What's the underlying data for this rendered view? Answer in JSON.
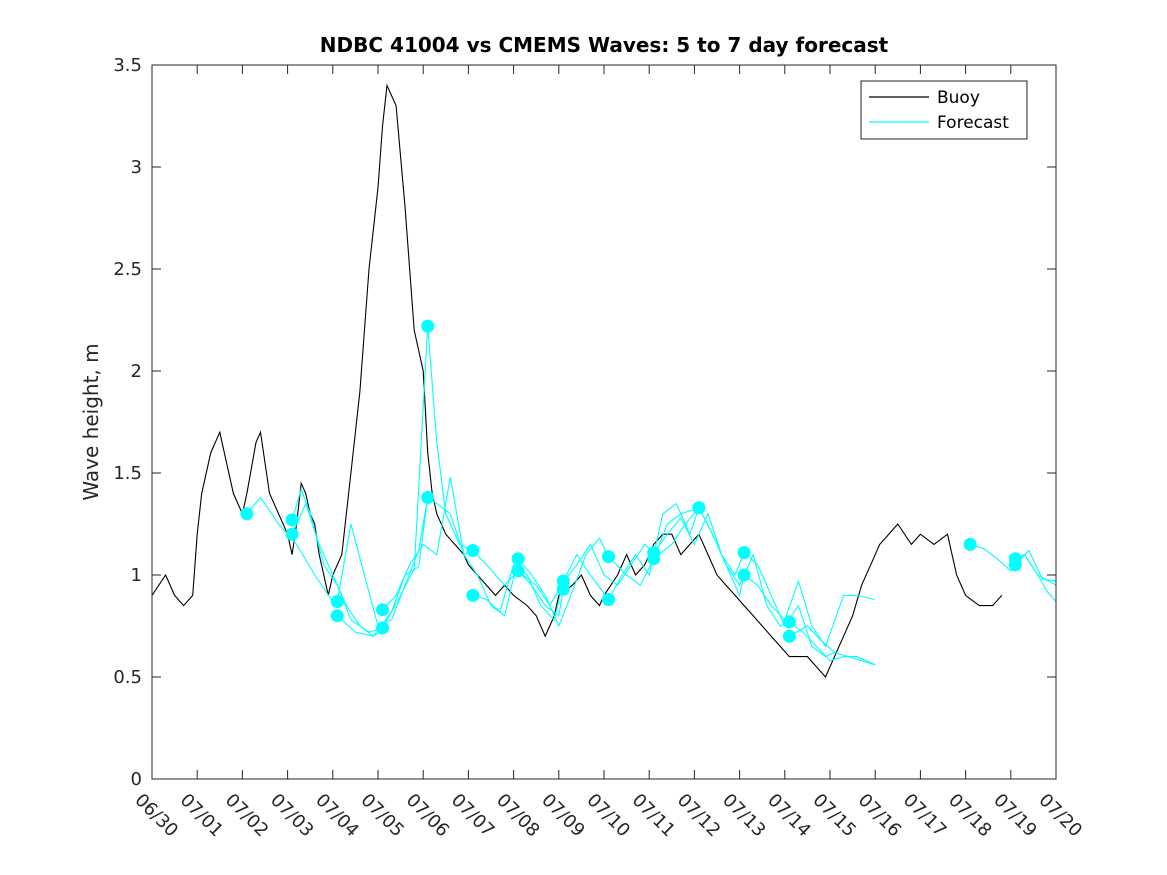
{
  "chart_data": {
    "type": "line",
    "title": "NDBC 41004 vs CMEMS Waves: 5 to 7 day forecast",
    "xlabel": "",
    "ylabel": "Wave height, m",
    "x_domain": [
      "06/30",
      "07/20"
    ],
    "ylim": [
      0,
      3.5
    ],
    "x_ticks": [
      "06/30",
      "07/01",
      "07/02",
      "07/03",
      "07/04",
      "07/05",
      "07/06",
      "07/07",
      "07/08",
      "07/09",
      "07/10",
      "07/11",
      "07/12",
      "07/13",
      "07/14",
      "07/15",
      "07/16",
      "07/17",
      "07/18",
      "07/19",
      "07/20"
    ],
    "y_ticks": [
      0,
      0.5,
      1,
      1.5,
      2,
      2.5,
      3,
      3.5
    ],
    "y_tick_labels": [
      "0",
      "0.5",
      "1",
      "1.5",
      "2",
      "2.5",
      "3",
      "3.5"
    ],
    "grid": false,
    "legend": {
      "position": "top-right",
      "entries": [
        {
          "label": "Buoy",
          "color": "#000000"
        },
        {
          "label": "Forecast",
          "color": "#00ffff"
        }
      ]
    },
    "buoy_color": "#000000",
    "forecast_color": "#00ffff",
    "buoy_series": {
      "name": "Buoy",
      "x_days": [
        0,
        0.3,
        0.5,
        0.7,
        0.9,
        1.0,
        1.1,
        1.3,
        1.5,
        1.6,
        1.7,
        1.8,
        1.9,
        2.0,
        2.1,
        2.3,
        2.4,
        2.5,
        2.6,
        2.8,
        3.0,
        3.1,
        3.2,
        3.3,
        3.4,
        3.5,
        3.6,
        3.7,
        3.8,
        3.9,
        4.0,
        4.2,
        4.4,
        4.6,
        4.8,
        5.0,
        5.1,
        5.2,
        5.4,
        5.6,
        5.8,
        6.0,
        6.05,
        6.1,
        6.2,
        6.3,
        6.5,
        6.7,
        6.9,
        7.0,
        7.2,
        7.4,
        7.6,
        7.8,
        8.0,
        8.3,
        8.5,
        8.7,
        8.9,
        9.0,
        9.3,
        9.5,
        9.7,
        9.9,
        10.0,
        10.3,
        10.5,
        10.7,
        10.9,
        11.1,
        11.3,
        11.5,
        11.7,
        11.9,
        12.1,
        12.3,
        12.5,
        12.7,
        12.9,
        13.1,
        13.3,
        13.5,
        13.7,
        13.9,
        14.1,
        14.3,
        14.5,
        14.7,
        14.9,
        15.1,
        15.3,
        15.5,
        15.7,
        15.9,
        16.1,
        16.3,
        16.5,
        16.8,
        17.0,
        17.3,
        17.6,
        17.8,
        18.0,
        18.3,
        18.6,
        18.8
      ],
      "y": [
        0.9,
        1.0,
        0.9,
        0.85,
        0.9,
        1.2,
        1.4,
        1.6,
        1.7,
        1.6,
        1.5,
        1.4,
        1.35,
        1.3,
        1.4,
        1.65,
        1.7,
        1.55,
        1.4,
        1.3,
        1.2,
        1.1,
        1.25,
        1.45,
        1.4,
        1.3,
        1.25,
        1.1,
        1.0,
        0.9,
        1.0,
        1.1,
        1.5,
        1.9,
        2.5,
        2.9,
        3.2,
        3.4,
        3.3,
        2.8,
        2.2,
        2.0,
        1.8,
        1.6,
        1.4,
        1.3,
        1.2,
        1.15,
        1.1,
        1.05,
        1.0,
        0.95,
        0.9,
        0.95,
        0.9,
        0.85,
        0.8,
        0.7,
        0.8,
        0.9,
        0.95,
        1.0,
        0.9,
        0.85,
        0.9,
        1.0,
        1.1,
        1.0,
        1.05,
        1.15,
        1.2,
        1.2,
        1.1,
        1.15,
        1.2,
        1.1,
        1.0,
        0.95,
        0.9,
        0.85,
        0.8,
        0.75,
        0.7,
        0.65,
        0.6,
        0.6,
        0.6,
        0.55,
        0.5,
        0.6,
        0.7,
        0.8,
        0.95,
        1.05,
        1.15,
        1.2,
        1.25,
        1.15,
        1.2,
        1.15,
        1.2,
        1.0,
        0.9,
        0.85,
        0.85,
        0.9
      ]
    },
    "forecast_series": [
      {
        "x": [
          2.1,
          2.4,
          2.8,
          3.2,
          3.6,
          4.0
        ],
        "y": [
          1.3,
          1.38,
          1.25,
          1.15,
          1.0,
          0.87
        ]
      },
      {
        "x": [
          3.1,
          3.3,
          3.5,
          3.8,
          4.1,
          4.4,
          4.8,
          5.1
        ],
        "y": [
          1.27,
          1.42,
          1.3,
          1.05,
          0.95,
          0.78,
          0.72,
          0.74
        ]
      },
      {
        "x": [
          3.1,
          3.4,
          3.7,
          4.0,
          4.3,
          4.6,
          4.9,
          5.1
        ],
        "y": [
          1.2,
          1.35,
          1.15,
          1.0,
          0.85,
          0.75,
          0.7,
          0.73
        ]
      },
      {
        "x": [
          4.1,
          4.4,
          4.7,
          5.0,
          5.3,
          5.6,
          5.9,
          6.1
        ],
        "y": [
          0.87,
          1.25,
          1.0,
          0.75,
          0.78,
          0.95,
          1.12,
          1.38
        ]
      },
      {
        "x": [
          4.1,
          4.5,
          4.9,
          5.3,
          5.6,
          5.9,
          6.1
        ],
        "y": [
          0.8,
          0.72,
          0.7,
          0.82,
          1.0,
          1.04,
          1.38
        ]
      },
      {
        "x": [
          5.1,
          5.4,
          5.7,
          6.0,
          6.3,
          6.6,
          6.9,
          7.1
        ],
        "y": [
          0.83,
          0.9,
          1.05,
          1.15,
          1.1,
          1.48,
          1.1,
          1.12
        ]
      },
      {
        "x": [
          5.1,
          5.5,
          5.8,
          6.1,
          6.3,
          6.5,
          6.8,
          7.1
        ],
        "y": [
          0.74,
          0.9,
          1.03,
          2.22,
          1.65,
          1.3,
          1.15,
          1.12
        ]
      },
      {
        "x": [
          6.1,
          6.3,
          6.6,
          6.9,
          7.2,
          7.5,
          7.8,
          8.1
        ],
        "y": [
          1.38,
          1.35,
          1.3,
          1.1,
          1.0,
          0.85,
          0.8,
          1.08
        ]
      },
      {
        "x": [
          7.1,
          7.4,
          7.7,
          8.0,
          8.3,
          8.6,
          8.9,
          9.1
        ],
        "y": [
          0.9,
          0.88,
          0.82,
          1.05,
          1.0,
          0.85,
          0.78,
          0.97
        ]
      },
      {
        "x": [
          7.1,
          7.4,
          7.8,
          8.1,
          8.4,
          8.7,
          9.0,
          9.1
        ],
        "y": [
          1.12,
          1.05,
          0.95,
          1.02,
          0.95,
          0.85,
          0.8,
          0.93
        ]
      },
      {
        "x": [
          8.1,
          8.4,
          8.7,
          9.0,
          9.3,
          9.6,
          9.9,
          10.1
        ],
        "y": [
          1.08,
          1.0,
          0.9,
          0.75,
          0.92,
          1.1,
          1.18,
          1.09
        ]
      },
      {
        "x": [
          8.1,
          8.5,
          8.8,
          9.1,
          9.4,
          9.7,
          10.1
        ],
        "y": [
          1.02,
          0.95,
          0.85,
          0.97,
          1.1,
          1.0,
          0.88
        ]
      },
      {
        "x": [
          9.1,
          9.4,
          9.7,
          10.0,
          10.3,
          10.6,
          10.9,
          11.1
        ],
        "y": [
          0.97,
          1.05,
          1.15,
          1.0,
          0.95,
          1.05,
          1.15,
          1.11
        ]
      },
      {
        "x": [
          10.1,
          10.4,
          10.7,
          11.0,
          11.3,
          11.6,
          11.9,
          12.1
        ],
        "y": [
          0.88,
          1.0,
          1.1,
          1.0,
          1.3,
          1.35,
          1.2,
          1.33
        ]
      },
      {
        "x": [
          10.1,
          10.5,
          10.8,
          11.1,
          11.4,
          11.7,
          12.1
        ],
        "y": [
          1.09,
          1.0,
          0.95,
          1.08,
          1.25,
          1.3,
          1.33
        ]
      },
      {
        "x": [
          11.1,
          11.4,
          11.7,
          12.0,
          12.3,
          12.6,
          12.9,
          13.1
        ],
        "y": [
          1.11,
          1.2,
          1.28,
          1.15,
          1.3,
          1.1,
          1.0,
          1.11
        ]
      },
      {
        "x": [
          11.1,
          11.5,
          11.8,
          12.1,
          12.4,
          12.7,
          13.0,
          13.1
        ],
        "y": [
          1.08,
          1.15,
          1.25,
          1.33,
          1.2,
          1.05,
          0.9,
          1.0
        ]
      },
      {
        "x": [
          12.1,
          12.4,
          12.7,
          13.0,
          13.3,
          13.6,
          13.9,
          14.1
        ],
        "y": [
          1.33,
          1.2,
          1.05,
          0.95,
          1.1,
          0.85,
          0.75,
          0.77
        ]
      },
      {
        "x": [
          13.1,
          13.4,
          13.7,
          14.0,
          14.3,
          14.6,
          14.9,
          15.1
        ],
        "y": [
          1.11,
          1.05,
          0.9,
          0.75,
          0.85,
          0.65,
          0.6,
          0.62
        ]
      },
      {
        "x": [
          13.1,
          13.4,
          13.7,
          14.0,
          14.3,
          14.6,
          14.9,
          15.3,
          15.6,
          16.0
        ],
        "y": [
          1.0,
          0.95,
          0.85,
          0.78,
          0.97,
          0.75,
          0.65,
          0.9,
          0.9,
          0.88
        ]
      },
      {
        "x": [
          14.1,
          14.4,
          14.7,
          15.0,
          15.3,
          15.6,
          15.9,
          16.0
        ],
        "y": [
          0.77,
          0.72,
          0.65,
          0.58,
          0.6,
          0.6,
          0.57,
          0.56
        ]
      },
      {
        "x": [
          14.1,
          14.5,
          14.8,
          15.1,
          15.4,
          15.7,
          16.0
        ],
        "y": [
          0.7,
          0.75,
          0.68,
          0.62,
          0.6,
          0.58,
          0.56
        ]
      },
      {
        "x": [
          18.1,
          18.4,
          18.7,
          19.0,
          19.1,
          19.3,
          19.6,
          20.0
        ],
        "y": [
          1.15,
          1.13,
          1.08,
          1.02,
          1.05,
          1.1,
          1.0,
          0.95
        ]
      },
      {
        "x": [
          19.1,
          19.3,
          19.6,
          19.8,
          20.0
        ],
        "y": [
          1.08,
          1.1,
          1.0,
          0.92,
          0.87
        ]
      },
      {
        "x": [
          19.1,
          19.4,
          19.7,
          20.0
        ],
        "y": [
          1.05,
          1.12,
          0.98,
          0.97
        ]
      }
    ],
    "forecast_markers": [
      {
        "x": 2.1,
        "y": 1.3
      },
      {
        "x": 3.1,
        "y": 1.27
      },
      {
        "x": 3.1,
        "y": 1.2
      },
      {
        "x": 4.1,
        "y": 0.87
      },
      {
        "x": 4.1,
        "y": 0.8
      },
      {
        "x": 5.1,
        "y": 0.83
      },
      {
        "x": 5.1,
        "y": 0.74
      },
      {
        "x": 6.1,
        "y": 2.22
      },
      {
        "x": 6.1,
        "y": 1.38
      },
      {
        "x": 7.1,
        "y": 1.12
      },
      {
        "x": 7.1,
        "y": 0.9
      },
      {
        "x": 8.1,
        "y": 1.08
      },
      {
        "x": 8.1,
        "y": 1.02
      },
      {
        "x": 9.1,
        "y": 0.97
      },
      {
        "x": 9.1,
        "y": 0.93
      },
      {
        "x": 10.1,
        "y": 1.09
      },
      {
        "x": 10.1,
        "y": 0.88
      },
      {
        "x": 11.1,
        "y": 1.11
      },
      {
        "x": 11.1,
        "y": 1.08
      },
      {
        "x": 12.1,
        "y": 1.33
      },
      {
        "x": 13.1,
        "y": 1.11
      },
      {
        "x": 13.1,
        "y": 1.0
      },
      {
        "x": 14.1,
        "y": 0.77
      },
      {
        "x": 14.1,
        "y": 0.7
      },
      {
        "x": 18.1,
        "y": 1.15
      },
      {
        "x": 19.1,
        "y": 1.08
      },
      {
        "x": 19.1,
        "y": 1.05
      }
    ]
  }
}
